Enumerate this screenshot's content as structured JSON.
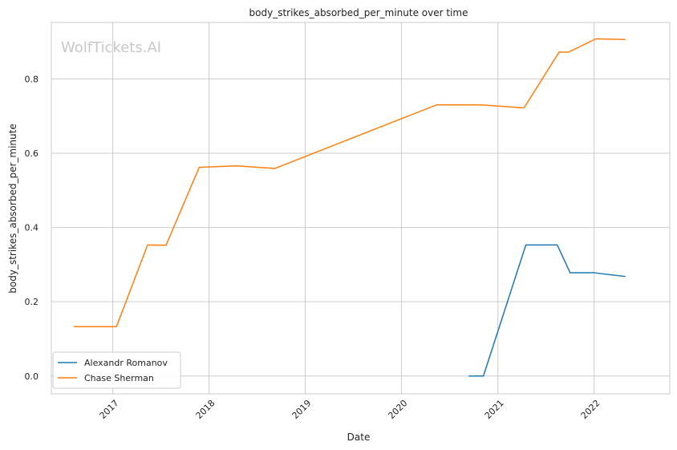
{
  "chart_data": {
    "type": "line",
    "title": "body_strikes_absorbed_per_minute over time",
    "xlabel": "Date",
    "ylabel": "body_strikes_absorbed_per_minute",
    "watermark": "WolfTickets.AI",
    "x_ticks": [
      "2017",
      "2018",
      "2019",
      "2020",
      "2021",
      "2022"
    ],
    "y_ticks": [
      "0.0",
      "0.2",
      "0.4",
      "0.6",
      "0.8"
    ],
    "xlim": [
      "2016-05-13",
      "2022-10-15"
    ],
    "ylim": [
      -0.048,
      0.952
    ],
    "grid": true,
    "legend_position": "bottom-left",
    "series": [
      {
        "name": "Alexandr Romanov",
        "color": "#1f77b4",
        "points": [
          {
            "x": "2020-09-12",
            "y": 0.0
          },
          {
            "x": "2020-11-07",
            "y": 0.0
          },
          {
            "x": "2021-04-17",
            "y": 0.353
          },
          {
            "x": "2021-08-14",
            "y": 0.353
          },
          {
            "x": "2021-10-02",
            "y": 0.278
          },
          {
            "x": "2022-01-01",
            "y": 0.278
          },
          {
            "x": "2022-04-30",
            "y": 0.268
          }
        ]
      },
      {
        "name": "Chase Sherman",
        "color": "#ff7f0e",
        "points": [
          {
            "x": "2016-08-06",
            "y": 0.133
          },
          {
            "x": "2017-01-15",
            "y": 0.133
          },
          {
            "x": "2017-05-13",
            "y": 0.353
          },
          {
            "x": "2017-07-22",
            "y": 0.352
          },
          {
            "x": "2017-11-25",
            "y": 0.562
          },
          {
            "x": "2018-04-14",
            "y": 0.566
          },
          {
            "x": "2018-09-08",
            "y": 0.559
          },
          {
            "x": "2020-05-13",
            "y": 0.73
          },
          {
            "x": "2020-10-31",
            "y": 0.73
          },
          {
            "x": "2021-04-10",
            "y": 0.722
          },
          {
            "x": "2021-08-21",
            "y": 0.872
          },
          {
            "x": "2021-09-25",
            "y": 0.872
          },
          {
            "x": "2022-01-08",
            "y": 0.908
          },
          {
            "x": "2022-04-30",
            "y": 0.906
          }
        ]
      }
    ]
  }
}
